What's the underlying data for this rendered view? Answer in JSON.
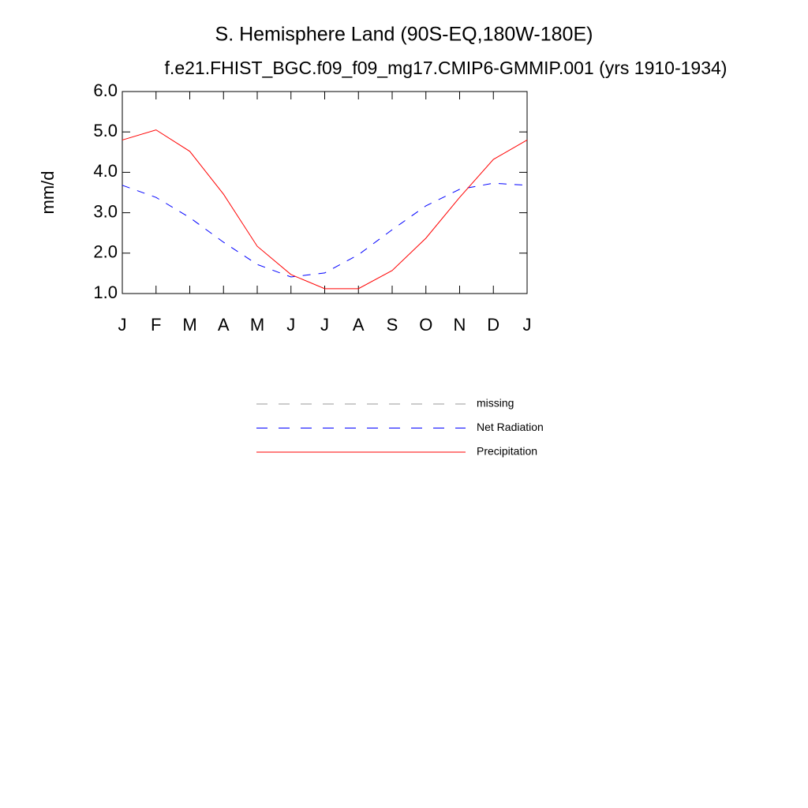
{
  "chart_data": {
    "type": "line",
    "title": "S. Hemisphere Land (90S-EQ,180W-180E)",
    "subtitle": "f.e21.FHIST_BGC.f09_f09_mg17.CMIP6-GMMIP.001 (yrs 1910-1934)",
    "ylabel": "mm/d",
    "categories": [
      "J",
      "F",
      "M",
      "A",
      "M",
      "J",
      "J",
      "A",
      "S",
      "O",
      "N",
      "D",
      "J"
    ],
    "ylim": [
      1,
      6
    ],
    "yticks": [
      {
        "value": 1,
        "label": "1.0"
      },
      {
        "value": 2,
        "label": "2.0"
      },
      {
        "value": 3,
        "label": "3.0"
      },
      {
        "value": 4,
        "label": "4.0"
      },
      {
        "value": 5,
        "label": "5.0"
      },
      {
        "value": 6,
        "label": "6.0"
      }
    ],
    "series": [
      {
        "name": "missing",
        "color": "#999999",
        "dashed": true,
        "values": [
          null,
          null,
          null,
          null,
          null,
          null,
          null,
          null,
          null,
          null,
          null,
          null,
          null
        ]
      },
      {
        "name": "Net Radiation",
        "color": "#0000ff",
        "dashed": true,
        "values": [
          3.68,
          3.38,
          2.88,
          2.27,
          1.72,
          1.41,
          1.51,
          1.96,
          2.58,
          3.17,
          3.58,
          3.73,
          3.68
        ]
      },
      {
        "name": "Precipitation",
        "color": "#ff0000",
        "dashed": false,
        "values": [
          4.8,
          5.05,
          4.52,
          3.46,
          2.17,
          1.47,
          1.12,
          1.12,
          1.57,
          2.37,
          3.38,
          4.32,
          4.8
        ]
      }
    ]
  }
}
